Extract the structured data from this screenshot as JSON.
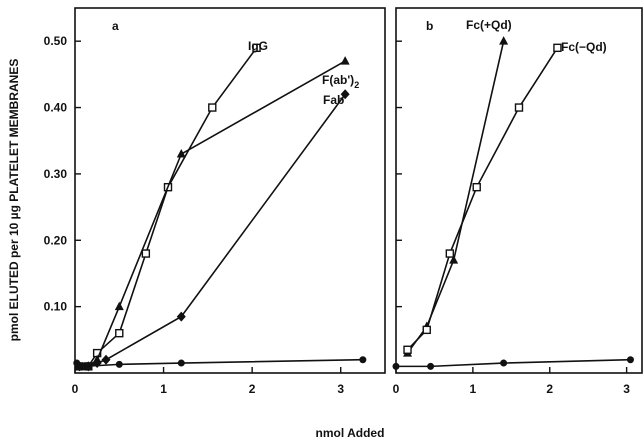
{
  "figure": {
    "ylabel": "pmol ELUTED per 10 µg PLATELET MEMBRANES",
    "xlabel": "nmol Added"
  },
  "chart_data": [
    {
      "type": "line",
      "panel_label": "a",
      "xlim": [
        0,
        3.5
      ],
      "ylim": [
        0,
        0.55
      ],
      "xticks": [
        "0",
        "1",
        "2",
        "3"
      ],
      "yticks": [
        "0.10",
        "0.20",
        "0.30",
        "0.40",
        "0.50"
      ],
      "series": [
        {
          "name": "IgG",
          "marker": "open-square",
          "x": [
            0.05,
            0.15,
            0.25,
            0.5,
            0.8,
            1.05,
            1.55,
            2.05
          ],
          "y": [
            0.01,
            0.01,
            0.03,
            0.06,
            0.18,
            0.28,
            0.4,
            0.49
          ]
        },
        {
          "name": "F(ab')2",
          "marker": "filled-triangle",
          "x": [
            0.05,
            0.15,
            0.25,
            0.5,
            1.2,
            3.05
          ],
          "y": [
            0.01,
            0.01,
            0.02,
            0.1,
            0.33,
            0.47
          ]
        },
        {
          "name": "Fab",
          "marker": "filled-diamond",
          "x": [
            0.05,
            0.15,
            0.25,
            0.35,
            1.2,
            3.05
          ],
          "y": [
            0.01,
            0.01,
            0.015,
            0.02,
            0.085,
            0.42
          ]
        },
        {
          "name": "",
          "marker": "filled-circle",
          "x": [
            0.02,
            0.1,
            0.5,
            1.2,
            3.25
          ],
          "y": [
            0.015,
            0.01,
            0.013,
            0.015,
            0.02
          ]
        }
      ]
    },
    {
      "type": "line",
      "panel_label": "b",
      "xlim": [
        0,
        3.2
      ],
      "ylim": [
        0,
        0.55
      ],
      "xticks": [
        "0",
        "1",
        "2",
        "3"
      ],
      "series": [
        {
          "name": "Fc(+Qd)",
          "marker": "filled-triangle",
          "x": [
            0.15,
            0.4,
            0.75,
            1.4
          ],
          "y": [
            0.03,
            0.07,
            0.17,
            0.5
          ]
        },
        {
          "name": "Fc(−Qd)",
          "marker": "open-square",
          "x": [
            0.15,
            0.4,
            0.7,
            1.05,
            1.6,
            2.1
          ],
          "y": [
            0.035,
            0.065,
            0.18,
            0.28,
            0.4,
            0.49
          ]
        },
        {
          "name": "",
          "marker": "filled-circle",
          "x": [
            0.0,
            0.45,
            1.4,
            3.05
          ],
          "y": [
            0.01,
            0.01,
            0.015,
            0.02
          ]
        }
      ]
    }
  ]
}
